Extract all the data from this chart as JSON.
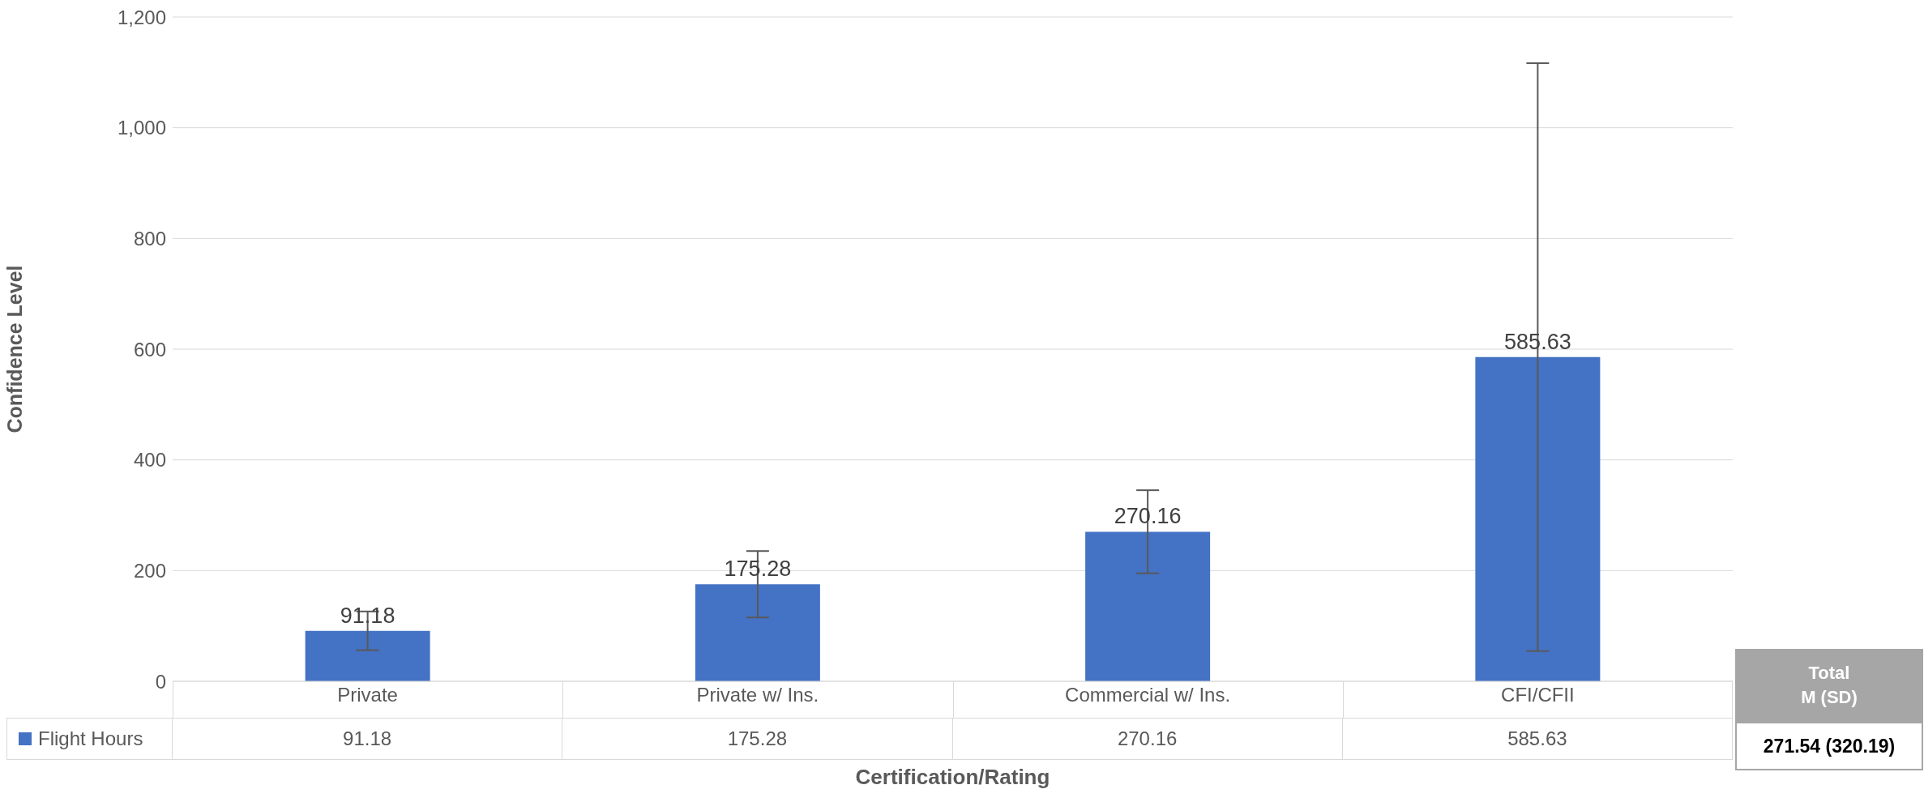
{
  "chart_data": {
    "type": "bar",
    "xlabel": "Certification/Rating",
    "ylabel": "Confidence Level",
    "categories": [
      "Private",
      "Private w/ Ins.",
      "Commercial w/ Ins.",
      "CFI/CFII"
    ],
    "series": [
      {
        "name": "Flight Hours",
        "color": "#4472c4",
        "values": [
          91.18,
          175.28,
          270.16,
          585.63
        ],
        "errors": [
          35,
          60,
          75,
          531
        ],
        "value_labels": [
          "91.18",
          "175.28",
          "270.16",
          "585.63"
        ]
      }
    ],
    "ylim": [
      0,
      1200
    ],
    "yticks": [
      0,
      200,
      400,
      600,
      800,
      {
        "value": 1000,
        "label": "1,000"
      },
      {
        "value": 1200,
        "label": "1,200"
      }
    ],
    "grid": "y",
    "legend": "bottom",
    "data_labels": true,
    "annotations": [
      "Total\nM (SD)",
      "271.54 (320.19)"
    ]
  }
}
